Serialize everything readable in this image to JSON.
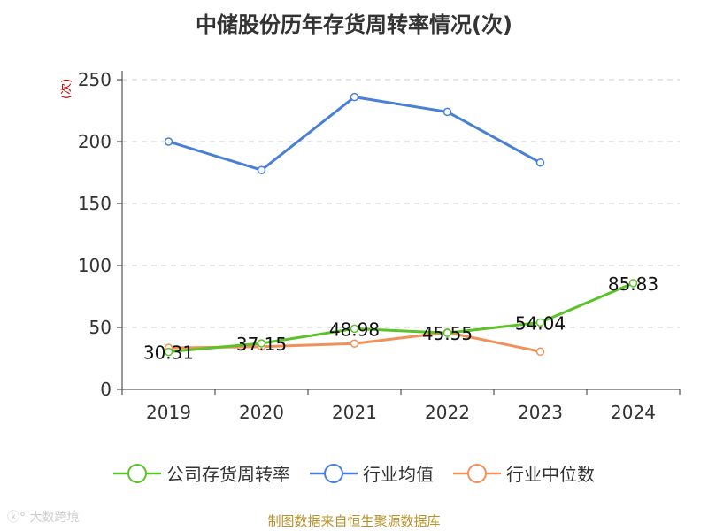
{
  "chart_data": {
    "type": "line",
    "title": "中储股份历年存货周转率情况(次)",
    "ylabel": "(次)",
    "categories": [
      "2019",
      "2020",
      "2021",
      "2022",
      "2023",
      "2024"
    ],
    "ylim": [
      0,
      250
    ],
    "yticks": [
      0,
      50,
      100,
      150,
      200,
      250
    ],
    "grid": true,
    "legend_position": "bottom",
    "series": [
      {
        "name": "公司存货周转率",
        "color": "#5cc22a",
        "values": [
          30.31,
          37.15,
          48.98,
          45.55,
          54.04,
          85.83
        ],
        "labels": true
      },
      {
        "name": "行业均值",
        "color": "#4a7fd8",
        "values": [
          200,
          177,
          236,
          224,
          183,
          null
        ]
      },
      {
        "name": "行业中位数",
        "color": "#f2905a",
        "values": [
          33.5,
          34.5,
          37,
          46,
          30.5,
          null
        ]
      }
    ]
  },
  "source": "制图数据来自恒生聚源数据库",
  "watermark": "大数跨境"
}
